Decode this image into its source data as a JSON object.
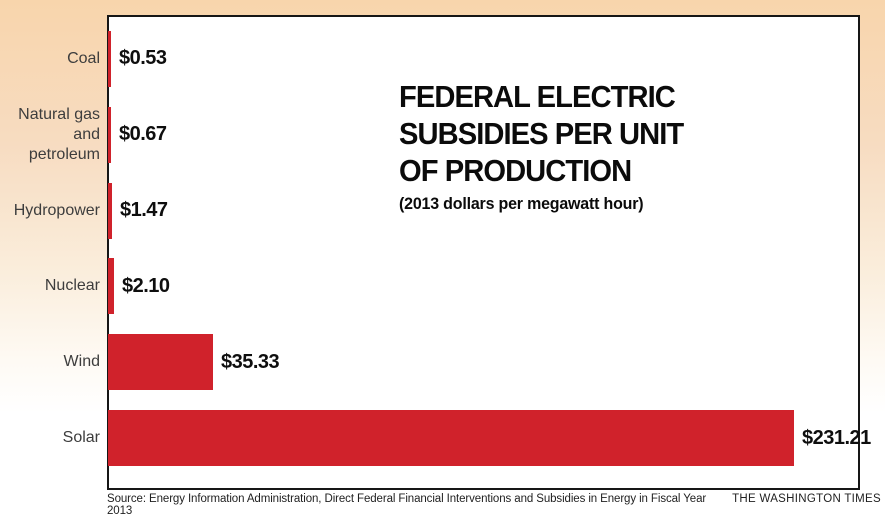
{
  "colors": {
    "background_top": "#f8d5ac",
    "background_bottom": "#ffffff",
    "bar": "#d0222b",
    "plot_border": "#161616",
    "category_label": "#3d3d3d",
    "value_label": "#0e0e0e"
  },
  "header": {
    "title": "FEDERAL ELECTRIC SUBSIDIES PER UNIT OF PRODUCTION",
    "title_lines": [
      "FEDERAL ELECTRIC",
      "SUBSIDIES PER UNIT",
      "OF PRODUCTION"
    ],
    "subtitle": "(2013 dollars per megawatt hour)"
  },
  "chart_data": {
    "type": "bar",
    "orientation": "horizontal",
    "title": "FEDERAL ELECTRIC SUBSIDIES PER UNIT OF PRODUCTION",
    "subtitle": "(2013 dollars per megawatt hour)",
    "unit": "2013 dollars per megawatt hour",
    "categories": [
      "Coal",
      "Natural gas\nand petroleum",
      "Hydropower",
      "Nuclear",
      "Wind",
      "Solar"
    ],
    "values": [
      0.53,
      0.67,
      1.47,
      2.1,
      35.33,
      231.21
    ],
    "value_labels": [
      "$0.53",
      "$0.67",
      "$1.47",
      "$2.10",
      "$35.33",
      "$231.21"
    ],
    "xlim": [
      0,
      245
    ],
    "grid": false,
    "legend": false,
    "bar_color": "#d0222b"
  },
  "footer": {
    "source": "Source: Energy Information Administration, Direct Federal Financial Interventions and Subsidies in Energy in Fiscal Year 2013",
    "credit": "THE WASHINGTON TIMES"
  }
}
